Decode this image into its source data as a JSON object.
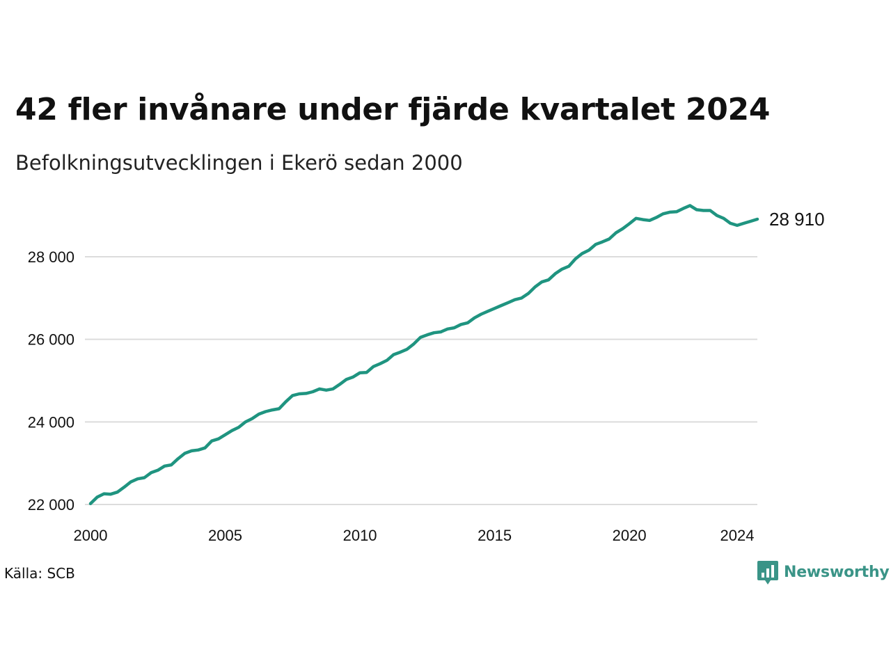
{
  "chart_data": {
    "type": "line",
    "title": "42 fler invånare under fjärde kvartalet 2024",
    "subtitle": "Befolkningsutvecklingen i Ekerö sedan 2000",
    "xlabel": "",
    "ylabel": "",
    "x_range": [
      2000,
      2024.75
    ],
    "ylim": [
      21950,
      29500
    ],
    "x_ticks": [
      {
        "value": 2000,
        "label": "2000"
      },
      {
        "value": 2005,
        "label": "2005"
      },
      {
        "value": 2010,
        "label": "2010"
      },
      {
        "value": 2015,
        "label": "2015"
      },
      {
        "value": 2020,
        "label": "2020"
      },
      {
        "value": 2024,
        "label": "2024"
      }
    ],
    "y_ticks": [
      {
        "value": 22000,
        "label": "22 000"
      },
      {
        "value": 24000,
        "label": "24 000"
      },
      {
        "value": 26000,
        "label": "26 000"
      },
      {
        "value": 28000,
        "label": "28 000"
      }
    ],
    "grid": {
      "horizontal": true,
      "vertical": false
    },
    "legend": "none",
    "end_label": "28 910",
    "series": [
      {
        "color": "#1f9480",
        "x": [
          2000.0,
          2000.25,
          2000.5,
          2000.75,
          2001.0,
          2001.25,
          2001.5,
          2001.75,
          2002.0,
          2002.25,
          2002.5,
          2002.75,
          2003.0,
          2003.25,
          2003.5,
          2003.75,
          2004.0,
          2004.25,
          2004.5,
          2004.75,
          2005.0,
          2005.25,
          2005.5,
          2005.75,
          2006.0,
          2006.25,
          2006.5,
          2006.75,
          2007.0,
          2007.25,
          2007.5,
          2007.75,
          2008.0,
          2008.25,
          2008.5,
          2008.75,
          2009.0,
          2009.25,
          2009.5,
          2009.75,
          2010.0,
          2010.25,
          2010.5,
          2010.75,
          2011.0,
          2011.25,
          2011.5,
          2011.75,
          2012.0,
          2012.25,
          2012.5,
          2012.75,
          2013.0,
          2013.25,
          2013.5,
          2013.75,
          2014.0,
          2014.25,
          2014.5,
          2014.75,
          2015.0,
          2015.25,
          2015.5,
          2015.75,
          2016.0,
          2016.25,
          2016.5,
          2016.75,
          2017.0,
          2017.25,
          2017.5,
          2017.75,
          2018.0,
          2018.25,
          2018.5,
          2018.75,
          2019.0,
          2019.25,
          2019.5,
          2019.75,
          2020.0,
          2020.25,
          2020.5,
          2020.75,
          2021.0,
          2021.25,
          2021.5,
          2021.75,
          2022.0,
          2022.25,
          2022.5,
          2022.75,
          2023.0,
          2023.25,
          2023.5,
          2023.75,
          2024.0,
          2024.25,
          2024.5,
          2024.75
        ],
        "values": [
          22020,
          22180,
          22260,
          22250,
          22300,
          22420,
          22550,
          22620,
          22650,
          22770,
          22830,
          22930,
          22960,
          23110,
          23240,
          23300,
          23320,
          23370,
          23540,
          23590,
          23690,
          23790,
          23870,
          24000,
          24080,
          24190,
          24250,
          24290,
          24320,
          24490,
          24640,
          24680,
          24690,
          24730,
          24800,
          24770,
          24800,
          24910,
          25030,
          25090,
          25190,
          25200,
          25340,
          25410,
          25490,
          25630,
          25690,
          25760,
          25890,
          26050,
          26110,
          26160,
          26180,
          26250,
          26280,
          26360,
          26400,
          26520,
          26610,
          26680,
          26750,
          26820,
          26890,
          26960,
          27000,
          27110,
          27270,
          27390,
          27440,
          27590,
          27700,
          27770,
          27950,
          28080,
          28160,
          28300,
          28360,
          28430,
          28580,
          28680,
          28800,
          28930,
          28900,
          28880,
          28950,
          29040,
          29080,
          29090,
          29170,
          29240,
          29140,
          29120,
          29120,
          29000,
          28930,
          28810,
          28760,
          28810,
          28860,
          28910
        ]
      }
    ]
  },
  "footer": {
    "source": "Källa: SCB",
    "brand": "Newsworthy"
  },
  "colors": {
    "line": "#1f9480",
    "grid": "#dcdcdc",
    "brand": "#3a9487"
  }
}
